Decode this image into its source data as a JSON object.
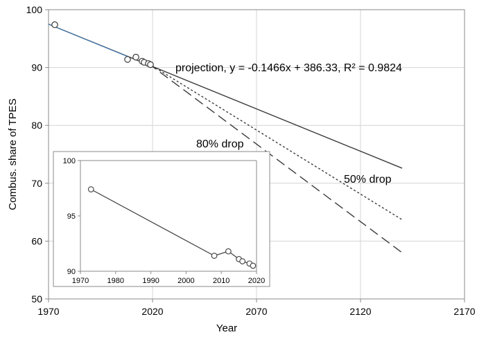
{
  "chart_data": [
    {
      "type": "scatter",
      "xlabel": "Year",
      "ylabel": "Combus. share of TPES",
      "xlim": [
        1970,
        2170
      ],
      "ylim": [
        50,
        100
      ],
      "x_ticks": [
        "1970",
        "2020",
        "2070",
        "2120",
        "2170"
      ],
      "y_ticks": [
        "50",
        "60",
        "70",
        "80",
        "90",
        "100"
      ],
      "grid": true,
      "series": [
        {
          "kind": "points",
          "x": [
            1973,
            2008,
            2012,
            2015,
            2016,
            2018,
            2019
          ],
          "y": [
            97.4,
            91.4,
            91.8,
            91.1,
            90.9,
            90.7,
            90.5
          ]
        },
        {
          "name": "projection, y = -0.1466x + 386.33, R² = 0.9824",
          "kind": "solid-line",
          "x": [
            1970,
            2140
          ],
          "y": [
            97.5,
            72.6
          ]
        },
        {
          "name": "50% drop",
          "kind": "dotted-line",
          "x": [
            2018,
            2140
          ],
          "y": [
            90.7,
            63.7
          ]
        },
        {
          "name": "80% drop",
          "kind": "dashed-line",
          "x": [
            2018,
            2140
          ],
          "y": [
            90.7,
            58.0
          ]
        }
      ],
      "annotations": [
        {
          "text": "projection, y = -0.1466x + 386.33, R² = 0.9824",
          "x": 2090,
          "y": 90.4
        },
        {
          "text": "80% drop",
          "x": 2055,
          "y": 78.3
        },
        {
          "text": "50% drop",
          "x": 2105,
          "y": 70.3
        }
      ],
      "line_color": "#3a3a3a",
      "fit_highlight_color": "#3f7fbf"
    },
    {
      "type": "line",
      "inset": true,
      "xlim": [
        1970,
        2020
      ],
      "ylim": [
        90,
        100
      ],
      "x_ticks": [
        "1970",
        "1980",
        "1990",
        "2000",
        "2010",
        "2020"
      ],
      "y_ticks": [
        "90",
        "95",
        "100"
      ],
      "grid": false,
      "x": [
        1973,
        2008,
        2012,
        2015,
        2016,
        2018,
        2019
      ],
      "y": [
        97.4,
        91.4,
        91.8,
        91.1,
        90.9,
        90.7,
        90.5
      ]
    }
  ]
}
